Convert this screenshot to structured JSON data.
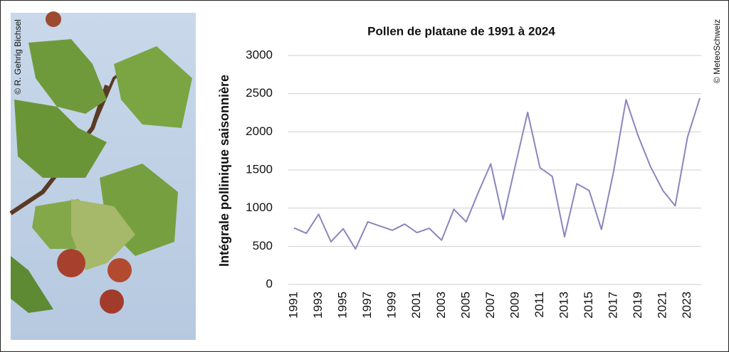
{
  "chart_data": {
    "type": "line",
    "title": "Pollen de platane de 1991 à 2024",
    "y_label": "Intégrale pollinique saisonnière",
    "credits": [
      "© R. Gehrig Bichsel",
      "© MeteoSchweiz"
    ],
    "x": [
      1991,
      1992,
      1993,
      1994,
      1995,
      1996,
      1997,
      1998,
      1999,
      2000,
      2001,
      2002,
      2003,
      2004,
      2005,
      2006,
      2007,
      2008,
      2009,
      2010,
      2011,
      2012,
      2013,
      2014,
      2015,
      2016,
      2017,
      2018,
      2019,
      2020,
      2021,
      2022,
      2023,
      2024
    ],
    "series": [
      {
        "name": "Pollen de platane",
        "color": "#8a85bd",
        "values": [
          740,
          670,
          920,
          560,
          730,
          465,
          820,
          765,
          710,
          790,
          680,
          735,
          580,
          985,
          820,
          1210,
          1580,
          850,
          1560,
          2255,
          1530,
          1415,
          625,
          1320,
          1230,
          720,
          1490,
          2420,
          1940,
          1540,
          1230,
          1030,
          1930,
          2440
        ]
      }
    ],
    "xlim": [
      1991,
      2024
    ],
    "xticks": [
      1991,
      1993,
      1995,
      1997,
      1999,
      2001,
      2003,
      2005,
      2007,
      2009,
      2011,
      2013,
      2015,
      2017,
      2019,
      2021,
      2023
    ],
    "ylim": [
      0,
      3000
    ],
    "yticks": [
      0,
      500,
      1000,
      1500,
      2000,
      2500,
      3000
    ],
    "grid": true
  }
}
